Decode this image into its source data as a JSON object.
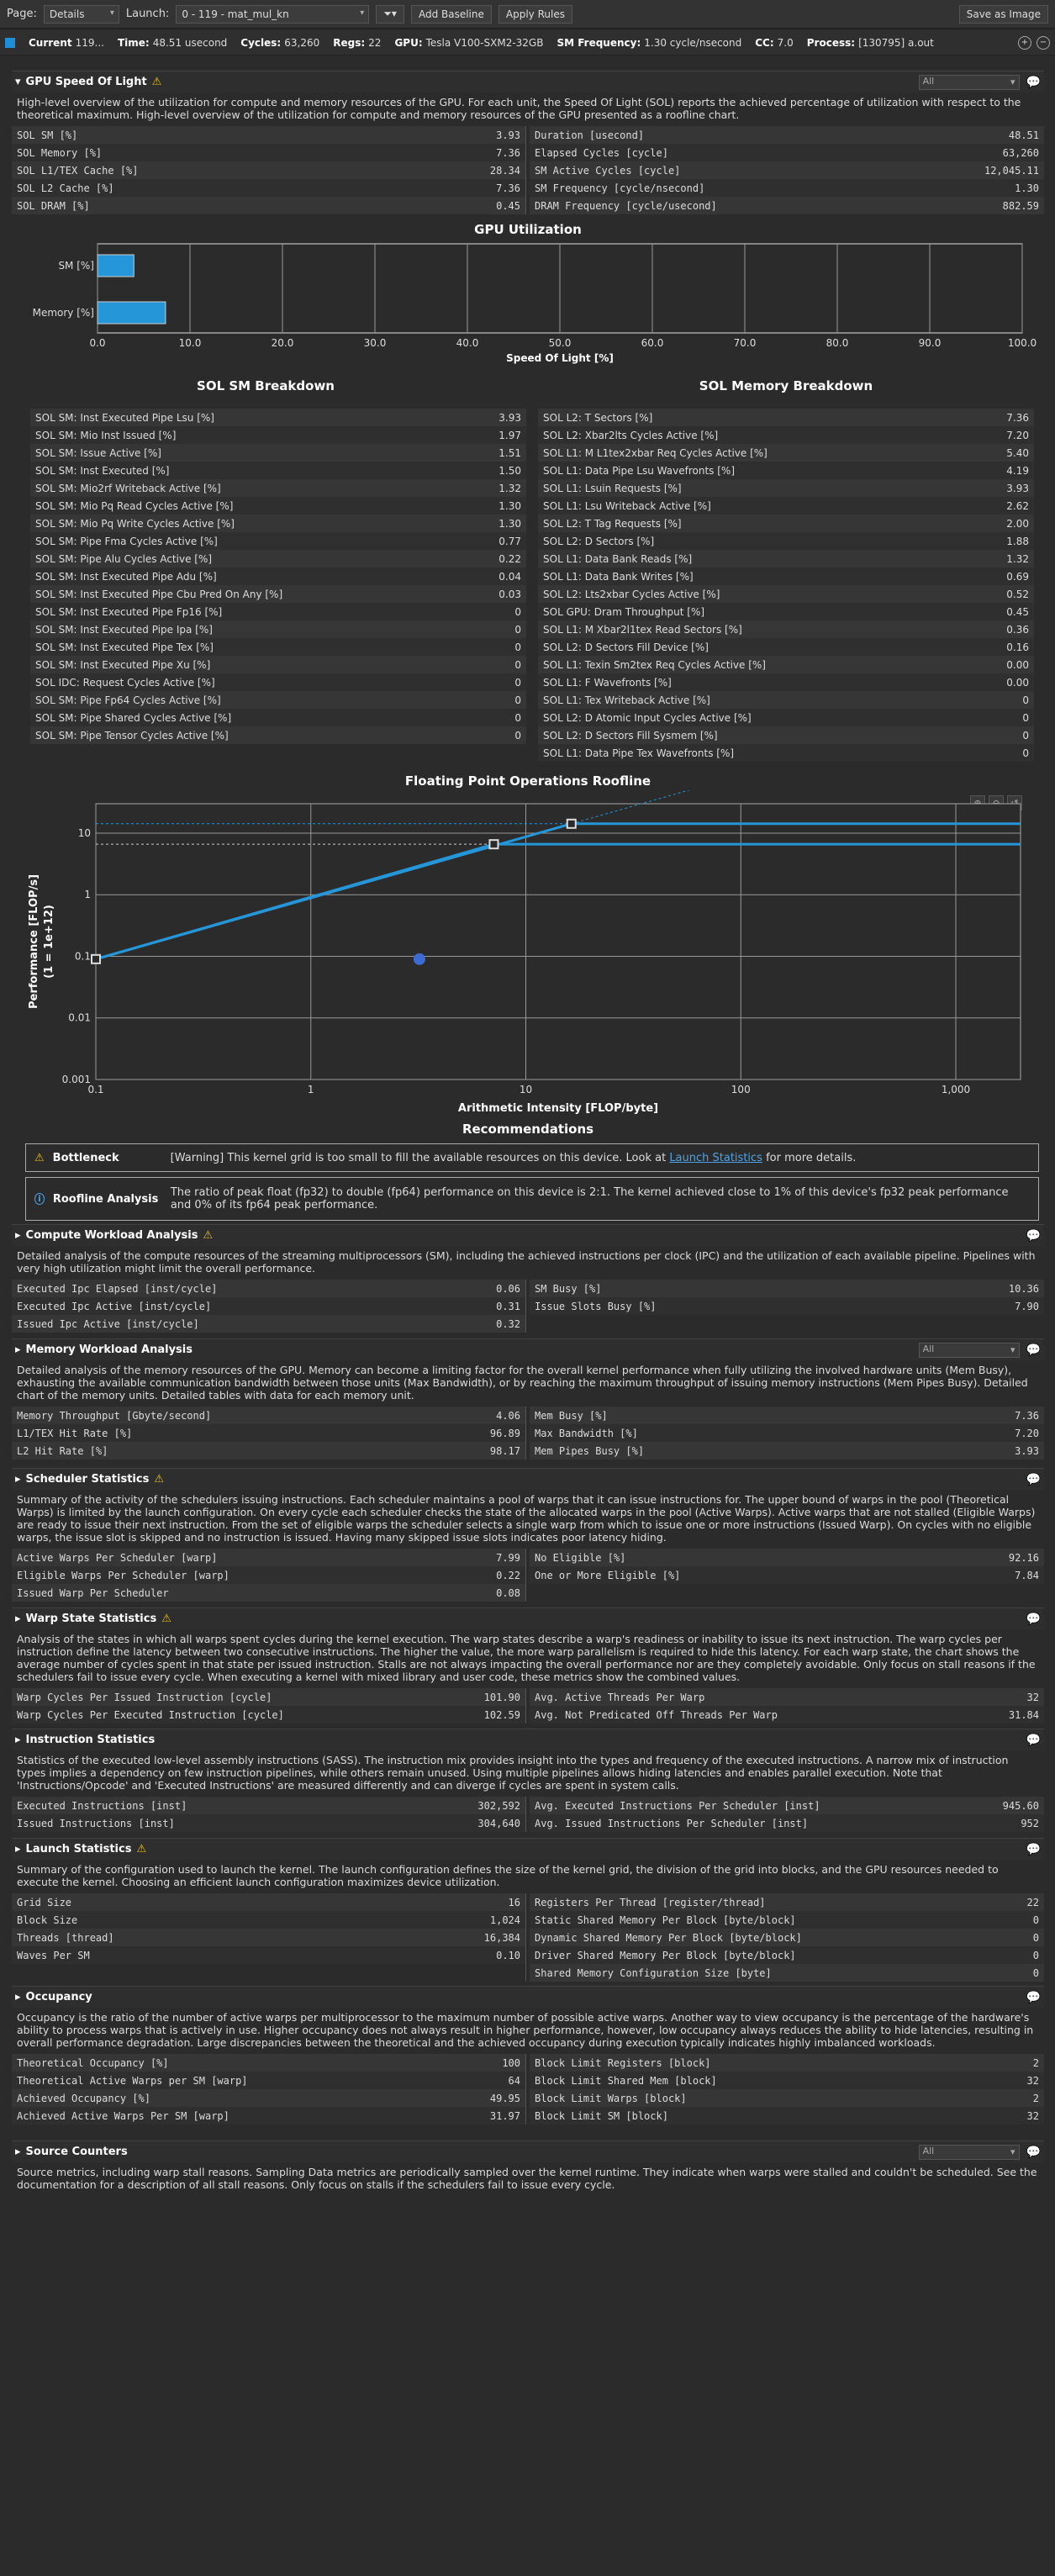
{
  "toolbar": {
    "page_label": "Page:",
    "page_value": "Details",
    "launch_label": "Launch:",
    "launch_value": "0 -  119 - mat_mul_kn",
    "filter_icon": "funnel-icon",
    "add_baseline": "Add Baseline",
    "apply_rules": "Apply Rules",
    "save_image": "Save as Image"
  },
  "info": {
    "current_label": "Current",
    "current_value": "119...",
    "time_label": "Time:",
    "time_value": "48.51 usecond",
    "cycles_label": "Cycles:",
    "cycles_value": "63,260",
    "regs_label": "Regs:",
    "regs_value": "22",
    "gpu_label": "GPU:",
    "gpu_value": "Tesla V100-SXM2-32GB",
    "smf_label": "SM Frequency:",
    "smf_value": "1.30 cycle/nsecond",
    "cc_label": "CC:",
    "cc_value": "7.0",
    "process_label": "Process:",
    "process_value": "[130795] a.out"
  },
  "sol": {
    "title": "GPU Speed Of Light",
    "filter": "All",
    "desc": "High-level overview of the utilization for compute and memory resources of the GPU. For each unit, the Speed Of Light (SOL) reports the achieved percentage of utilization with respect to the theoretical maximum. High-level overview of the utilization for compute and memory resources of the GPU presented as a roofline chart.",
    "left": [
      [
        "SOL SM [%]",
        "3.93"
      ],
      [
        "SOL Memory [%]",
        "7.36"
      ],
      [
        "SOL L1/TEX Cache [%]",
        "28.34"
      ],
      [
        "SOL L2 Cache [%]",
        "7.36"
      ],
      [
        "SOL DRAM [%]",
        "0.45"
      ]
    ],
    "right": [
      [
        "Duration [usecond]",
        "48.51"
      ],
      [
        "Elapsed Cycles [cycle]",
        "63,260"
      ],
      [
        "SM Active Cycles [cycle]",
        "12,045.11"
      ],
      [
        "SM Frequency [cycle/nsecond]",
        "1.30"
      ],
      [
        "DRAM Frequency [cycle/usecond]",
        "882.59"
      ]
    ]
  },
  "util_chart": {
    "title": "GPU Utilization",
    "xlabel": "Speed Of Light [%]",
    "categories": [
      "SM [%]",
      "Memory [%]"
    ],
    "values": [
      3.93,
      7.36
    ],
    "xlim": [
      0,
      100
    ],
    "ticks": [
      "0.0",
      "10.0",
      "20.0",
      "30.0",
      "40.0",
      "50.0",
      "60.0",
      "70.0",
      "80.0",
      "90.0",
      "100.0"
    ],
    "bar_color": "#2596d8"
  },
  "sm_breakdown": {
    "title": "SOL SM Breakdown",
    "rows": [
      [
        "SOL SM: Inst Executed Pipe Lsu [%]",
        "3.93"
      ],
      [
        "SOL SM: Mio Inst Issued [%]",
        "1.97"
      ],
      [
        "SOL SM: Issue Active [%]",
        "1.51"
      ],
      [
        "SOL SM: Inst Executed [%]",
        "1.50"
      ],
      [
        "SOL SM: Mio2rf Writeback Active [%]",
        "1.32"
      ],
      [
        "SOL SM: Mio Pq Read Cycles Active [%]",
        "1.30"
      ],
      [
        "SOL SM: Mio Pq Write Cycles Active [%]",
        "1.30"
      ],
      [
        "SOL SM: Pipe Fma Cycles Active [%]",
        "0.77"
      ],
      [
        "SOL SM: Pipe Alu Cycles Active [%]",
        "0.22"
      ],
      [
        "SOL SM: Inst Executed Pipe Adu [%]",
        "0.04"
      ],
      [
        "SOL SM: Inst Executed Pipe Cbu Pred On Any [%]",
        "0.03"
      ],
      [
        "SOL SM: Inst Executed Pipe Fp16 [%]",
        "0"
      ],
      [
        "SOL SM: Inst Executed Pipe Ipa [%]",
        "0"
      ],
      [
        "SOL SM: Inst Executed Pipe Tex [%]",
        "0"
      ],
      [
        "SOL SM: Inst Executed Pipe Xu [%]",
        "0"
      ],
      [
        "SOL IDC: Request Cycles Active [%]",
        "0"
      ],
      [
        "SOL SM: Pipe Fp64 Cycles Active [%]",
        "0"
      ],
      [
        "SOL SM: Pipe Shared Cycles Active [%]",
        "0"
      ],
      [
        "SOL SM: Pipe Tensor Cycles Active [%]",
        "0"
      ]
    ]
  },
  "mem_breakdown": {
    "title": "SOL Memory Breakdown",
    "rows": [
      [
        "SOL L2: T Sectors [%]",
        "7.36"
      ],
      [
        "SOL L2: Xbar2lts Cycles Active [%]",
        "7.20"
      ],
      [
        "SOL L1: M L1tex2xbar Req Cycles Active [%]",
        "5.40"
      ],
      [
        "SOL L1: Data Pipe Lsu Wavefronts [%]",
        "4.19"
      ],
      [
        "SOL L1: Lsuin Requests [%]",
        "3.93"
      ],
      [
        "SOL L1: Lsu Writeback Active [%]",
        "2.62"
      ],
      [
        "SOL L2: T Tag Requests [%]",
        "2.00"
      ],
      [
        "SOL L2: D Sectors [%]",
        "1.88"
      ],
      [
        "SOL L1: Data Bank Reads [%]",
        "1.32"
      ],
      [
        "SOL L1: Data Bank Writes [%]",
        "0.69"
      ],
      [
        "SOL L2: Lts2xbar Cycles Active [%]",
        "0.52"
      ],
      [
        "SOL GPU: Dram Throughput [%]",
        "0.45"
      ],
      [
        "SOL L1: M Xbar2l1tex Read Sectors [%]",
        "0.36"
      ],
      [
        "SOL L2: D Sectors Fill Device [%]",
        "0.16"
      ],
      [
        "SOL L1: Texin Sm2tex Req Cycles Active [%]",
        "0.00"
      ],
      [
        "SOL L1: F Wavefronts [%]",
        "0.00"
      ],
      [
        "SOL L1: Tex Writeback Active [%]",
        "0"
      ],
      [
        "SOL L2: D Atomic Input Cycles Active [%]",
        "0"
      ],
      [
        "SOL L2: D Sectors Fill Sysmem [%]",
        "0"
      ],
      [
        "SOL L1: Data Pipe Tex Wavefronts [%]",
        "0"
      ]
    ]
  },
  "chart_data": {
    "type": "line",
    "title": "Floating Point Operations Roofline",
    "xlabel": "Arithmetic Intensity [FLOP/byte]",
    "ylabel": "Performance [FLOP/s]",
    "ylabel2": "(1 = 1e+12)",
    "xscale": "log",
    "yscale": "log",
    "xlim": [
      0.1,
      2000
    ],
    "ylim": [
      0.001,
      30
    ],
    "xticks": [
      "0.1",
      "1",
      "10",
      "100",
      "1,000"
    ],
    "yticks": [
      "0.001",
      "0.01",
      "0.1",
      "1",
      "10"
    ],
    "series": [
      {
        "values": [
          [
            0.1,
            0.09
          ],
          [
            7.1,
            6.6
          ],
          [
            2000,
            6.6
          ]
        ]
      },
      {
        "values": [
          [
            0.1,
            0.09
          ],
          [
            16.3,
            14.2
          ],
          [
            2000,
            14.2
          ]
        ]
      }
    ],
    "points": [
      [
        0.1,
        0.09
      ],
      [
        7.1,
        6.6
      ],
      [
        16.3,
        14.2
      ],
      [
        3.2,
        0.09
      ]
    ],
    "color": "#2596d8"
  },
  "recommendations": {
    "title": "Recommendations",
    "bottleneck_title": "Bottleneck",
    "bottleneck_text": "[Warning] This kernel grid is too small to fill the available resources on this device. Look at",
    "bottleneck_link": "Launch Statistics",
    "bottleneck_tail": "for more details.",
    "roofline_title": "Roofline Analysis",
    "roofline_text": "The ratio of peak float (fp32) to double (fp64) performance on this device is 2:1. The kernel achieved  close to 1% of this device's fp32 peak performance and 0% of its fp64 peak performance."
  },
  "compute": {
    "title": "Compute Workload Analysis",
    "desc": "Detailed analysis of the compute resources of the streaming multiprocessors (SM), including the achieved instructions per clock (IPC) and the utilization of each available pipeline. Pipelines with very high utilization might limit the overall performance.",
    "left": [
      [
        "Executed Ipc Elapsed [inst/cycle]",
        "0.06"
      ],
      [
        "Executed Ipc Active [inst/cycle]",
        "0.31"
      ],
      [
        "Issued Ipc Active [inst/cycle]",
        "0.32"
      ]
    ],
    "right": [
      [
        "SM Busy [%]",
        "10.36"
      ],
      [
        "Issue Slots Busy [%]",
        "7.90"
      ]
    ]
  },
  "memory": {
    "title": "Memory Workload Analysis",
    "filter": "All",
    "desc": "Detailed analysis of the memory resources of the GPU. Memory can become a limiting factor for the overall kernel performance when fully utilizing the involved hardware units (Mem Busy), exhausting the available communication bandwidth between those units (Max Bandwidth), or by reaching the maximum throughput of issuing memory instructions (Mem Pipes Busy). Detailed chart of the memory units. Detailed tables with data for each memory unit.",
    "left": [
      [
        "Memory Throughput [Gbyte/second]",
        "4.06"
      ],
      [
        "L1/TEX Hit Rate [%]",
        "96.89"
      ],
      [
        "L2 Hit Rate [%]",
        "98.17"
      ]
    ],
    "right": [
      [
        "Mem Busy [%]",
        "7.36"
      ],
      [
        "Max Bandwidth [%]",
        "7.20"
      ],
      [
        "Mem Pipes Busy [%]",
        "3.93"
      ]
    ]
  },
  "scheduler": {
    "title": "Scheduler Statistics",
    "desc": "Summary of the activity of the schedulers issuing instructions. Each scheduler maintains a pool of warps that it can issue instructions for. The upper bound of warps in the pool (Theoretical Warps) is limited by the launch configuration. On every cycle each scheduler checks the state of the allocated warps in the pool (Active Warps). Active warps that are not stalled (Eligible Warps) are ready to issue their next instruction. From the set of eligible warps the scheduler selects a single warp from which to issue one or more instructions (Issued Warp). On cycles with no eligible warps, the issue slot is skipped and no instruction is issued. Having many skipped issue slots indicates poor latency hiding.",
    "left": [
      [
        "Active Warps Per Scheduler [warp]",
        "7.99"
      ],
      [
        "Eligible Warps Per Scheduler [warp]",
        "0.22"
      ],
      [
        "Issued Warp Per Scheduler",
        "0.08"
      ]
    ],
    "right": [
      [
        "No Eligible [%]",
        "92.16"
      ],
      [
        "One or More Eligible [%]",
        "7.84"
      ]
    ]
  },
  "warp": {
    "title": "Warp State Statistics",
    "desc": "Analysis of the states in which all warps spent cycles during the kernel execution. The warp states describe a warp's readiness or inability to issue its next instruction. The warp cycles per instruction define the latency between two consecutive instructions. The higher the value, the more warp parallelism is required to hide this latency. For each warp state, the chart shows the average number of cycles spent in that state per issued instruction. Stalls are not always impacting the overall performance nor are they completely avoidable. Only focus on stall reasons if the schedulers fail to issue every cycle. When executing a kernel with mixed library and user code, these metrics show the combined values.",
    "left": [
      [
        "Warp Cycles Per Issued Instruction [cycle]",
        "101.90"
      ],
      [
        "Warp Cycles Per Executed Instruction [cycle]",
        "102.59"
      ]
    ],
    "right": [
      [
        "Avg. Active Threads Per Warp",
        "32"
      ],
      [
        "Avg. Not Predicated Off Threads Per Warp",
        "31.84"
      ]
    ]
  },
  "instr": {
    "title": "Instruction Statistics",
    "desc": "Statistics of the executed low-level assembly instructions (SASS). The instruction mix provides insight into the types and frequency of the executed instructions. A narrow mix of instruction types implies a dependency on few instruction pipelines, while others remain unused. Using multiple pipelines allows hiding latencies and enables parallel execution. Note that 'Instructions/Opcode' and 'Executed Instructions' are measured differently and can diverge if cycles are spent in system calls.",
    "left": [
      [
        "Executed Instructions [inst]",
        "302,592"
      ],
      [
        "Issued Instructions [inst]",
        "304,640"
      ]
    ],
    "right": [
      [
        "Avg. Executed Instructions Per Scheduler [inst]",
        "945.60"
      ],
      [
        "Avg. Issued Instructions Per Scheduler [inst]",
        "952"
      ]
    ]
  },
  "launch": {
    "title": "Launch Statistics",
    "desc": "Summary of the configuration used to launch the kernel. The launch configuration defines the size of the kernel grid, the division of the grid into blocks, and the GPU resources needed to execute the kernel. Choosing an efficient launch configuration maximizes device utilization.",
    "left": [
      [
        "Grid Size",
        "16"
      ],
      [
        "Block Size",
        "1,024"
      ],
      [
        "Threads [thread]",
        "16,384"
      ],
      [
        "Waves Per SM",
        "0.10"
      ]
    ],
    "right": [
      [
        "Registers Per Thread [register/thread]",
        "22"
      ],
      [
        "Static Shared Memory Per Block [byte/block]",
        "0"
      ],
      [
        "Dynamic Shared Memory Per Block [byte/block]",
        "0"
      ],
      [
        "Driver Shared Memory Per Block [byte/block]",
        "0"
      ],
      [
        "Shared Memory Configuration Size [byte]",
        "0"
      ]
    ]
  },
  "occupancy": {
    "title": "Occupancy",
    "desc": "Occupancy is the ratio of the number of active warps per multiprocessor to the maximum number of possible active warps. Another way to view occupancy is the percentage of the hardware's ability to process warps that is actively in use. Higher occupancy does not always result in higher performance, however, low occupancy always reduces the ability to hide latencies, resulting in overall performance degradation. Large discrepancies between the theoretical and the achieved occupancy during execution typically indicates highly imbalanced workloads.",
    "left": [
      [
        "Theoretical Occupancy [%]",
        "100"
      ],
      [
        "Theoretical Active Warps per SM [warp]",
        "64"
      ],
      [
        "Achieved Occupancy [%]",
        "49.95"
      ],
      [
        "Achieved Active Warps Per SM [warp]",
        "31.97"
      ]
    ],
    "right": [
      [
        "Block Limit Registers [block]",
        "2"
      ],
      [
        "Block Limit Shared Mem [block]",
        "32"
      ],
      [
        "Block Limit Warps [block]",
        "2"
      ],
      [
        "Block Limit SM [block]",
        "32"
      ]
    ]
  },
  "source": {
    "title": "Source Counters",
    "filter": "All",
    "desc": "Source metrics, including warp stall reasons. Sampling Data metrics are periodically sampled over the kernel runtime. They indicate when warps were stalled and couldn't be scheduled. See the documentation for a description of all stall reasons. Only focus on stalls if the schedulers fail to issue every cycle."
  }
}
